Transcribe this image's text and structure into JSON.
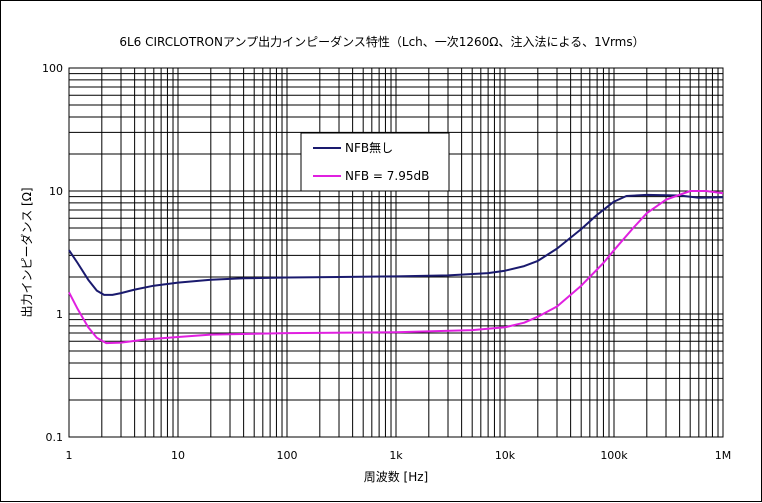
{
  "chart_data": {
    "type": "line",
    "title": "6L6 CIRCLOTRONアンプ出力インピーダンス特性（Lch、一次1260Ω、注入法による、1Vrms）",
    "xlabel": "周波数 [Hz]",
    "ylabel": "出力インピーダンス [Ω]",
    "x_scale": "log",
    "y_scale": "log",
    "xlim": [
      1,
      1000000
    ],
    "ylim": [
      0.1,
      100
    ],
    "x_tick_labels": [
      "1",
      "10",
      "100",
      "1k",
      "10k",
      "100k",
      "1M"
    ],
    "y_tick_labels": [
      "0.1",
      "1",
      "10",
      "100"
    ],
    "grid": true,
    "legend_position": "upper-center",
    "series": [
      {
        "name": "NFB無し",
        "color": "#1a1a6e",
        "points": [
          [
            1,
            3.3
          ],
          [
            1.2,
            2.6
          ],
          [
            1.5,
            1.9
          ],
          [
            1.8,
            1.55
          ],
          [
            2.1,
            1.43
          ],
          [
            2.5,
            1.43
          ],
          [
            3,
            1.48
          ],
          [
            4,
            1.58
          ],
          [
            6,
            1.7
          ],
          [
            10,
            1.8
          ],
          [
            20,
            1.9
          ],
          [
            40,
            1.95
          ],
          [
            100,
            1.98
          ],
          [
            300,
            2.0
          ],
          [
            1000,
            2.02
          ],
          [
            3000,
            2.06
          ],
          [
            7000,
            2.15
          ],
          [
            10000,
            2.25
          ],
          [
            15000,
            2.45
          ],
          [
            20000,
            2.7
          ],
          [
            30000,
            3.4
          ],
          [
            50000,
            4.9
          ],
          [
            70000,
            6.4
          ],
          [
            100000,
            8.2
          ],
          [
            130000,
            9.1
          ],
          [
            200000,
            9.3
          ],
          [
            400000,
            9.2
          ],
          [
            600000,
            8.8
          ],
          [
            1000000,
            8.9
          ]
        ]
      },
      {
        "name": "NFB = 7.95dB",
        "color": "#e020e0",
        "points": [
          [
            1,
            1.5
          ],
          [
            1.2,
            1.1
          ],
          [
            1.5,
            0.78
          ],
          [
            1.8,
            0.64
          ],
          [
            2.2,
            0.58
          ],
          [
            3,
            0.585
          ],
          [
            5,
            0.62
          ],
          [
            10,
            0.65
          ],
          [
            20,
            0.68
          ],
          [
            100,
            0.7
          ],
          [
            1000,
            0.71
          ],
          [
            5000,
            0.74
          ],
          [
            10000,
            0.78
          ],
          [
            15000,
            0.85
          ],
          [
            20000,
            0.95
          ],
          [
            30000,
            1.15
          ],
          [
            50000,
            1.7
          ],
          [
            80000,
            2.6
          ],
          [
            100000,
            3.3
          ],
          [
            150000,
            5.0
          ],
          [
            200000,
            6.6
          ],
          [
            300000,
            8.5
          ],
          [
            500000,
            10.0
          ],
          [
            700000,
            10.0
          ],
          [
            1000000,
            9.6
          ]
        ]
      }
    ]
  }
}
